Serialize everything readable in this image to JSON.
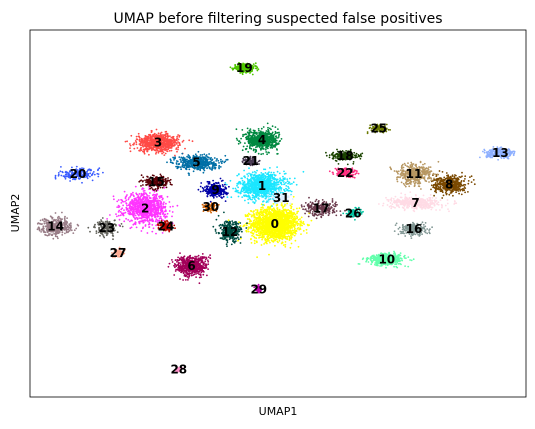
{
  "chart_data": {
    "type": "scatter",
    "title": "UMAP before filtering suspected false positives",
    "xlabel": "UMAP1",
    "ylabel": "UMAP2",
    "xlim": [
      -12,
      19
    ],
    "ylim": [
      -12,
      16
    ],
    "ticks_shown": false,
    "grid": false,
    "clusters": [
      {
        "label": "0",
        "color": "#ffff00",
        "x": 3.3,
        "y": 1.2,
        "sx": 1.3,
        "sy": 1.1,
        "n": 1800
      },
      {
        "label": "1",
        "color": "#1ce6ff",
        "x": 2.5,
        "y": 4.1,
        "sx": 1.3,
        "sy": 0.9,
        "n": 1000
      },
      {
        "label": "2",
        "color": "#ff34ff",
        "x": -4.8,
        "y": 2.4,
        "sx": 1.2,
        "sy": 1.0,
        "n": 900
      },
      {
        "label": "3",
        "color": "#ff4a46",
        "x": -4.0,
        "y": 7.4,
        "sx": 1.2,
        "sy": 0.6,
        "n": 700
      },
      {
        "label": "4",
        "color": "#008941",
        "x": 2.5,
        "y": 7.6,
        "sx": 0.9,
        "sy": 0.7,
        "n": 650
      },
      {
        "label": "5",
        "color": "#006fa6",
        "x": -1.6,
        "y": 5.9,
        "sx": 1.2,
        "sy": 0.5,
        "n": 450
      },
      {
        "label": "6",
        "color": "#a30059",
        "x": -1.9,
        "y": -2.0,
        "sx": 0.9,
        "sy": 0.7,
        "n": 550
      },
      {
        "label": "7",
        "color": "#ffdbe5",
        "x": 12.1,
        "y": 2.8,
        "sx": 1.4,
        "sy": 0.4,
        "n": 450
      },
      {
        "label": "8",
        "color": "#7a4900",
        "x": 14.2,
        "y": 4.2,
        "sx": 0.9,
        "sy": 0.6,
        "n": 450
      },
      {
        "label": "9",
        "color": "#0000a6",
        "x": -0.4,
        "y": 3.8,
        "sx": 0.6,
        "sy": 0.5,
        "n": 300
      },
      {
        "label": "10",
        "color": "#63ffac",
        "x": 10.3,
        "y": -1.5,
        "sx": 1.0,
        "sy": 0.4,
        "n": 450
      },
      {
        "label": "11",
        "color": "#b79762",
        "x": 12.0,
        "y": 5.0,
        "sx": 1.0,
        "sy": 0.7,
        "n": 400
      },
      {
        "label": "12",
        "color": "#004d43",
        "x": 0.5,
        "y": 0.6,
        "sx": 0.6,
        "sy": 0.7,
        "n": 300
      },
      {
        "label": "13",
        "color": "#8fb0ff",
        "x": 17.4,
        "y": 6.6,
        "sx": 0.8,
        "sy": 0.3,
        "n": 300
      },
      {
        "label": "14",
        "color": "#997d87",
        "x": -10.4,
        "y": 1.0,
        "sx": 0.9,
        "sy": 0.6,
        "n": 350
      },
      {
        "label": "15",
        "color": "#5a0007",
        "x": -4.1,
        "y": 4.4,
        "sx": 0.7,
        "sy": 0.4,
        "n": 250
      },
      {
        "label": "16",
        "color": "#809693",
        "x": 12.0,
        "y": 0.8,
        "sx": 0.7,
        "sy": 0.4,
        "n": 250
      },
      {
        "label": "17",
        "color": "#6a3a4c",
        "x": 6.2,
        "y": 2.4,
        "sx": 0.9,
        "sy": 0.5,
        "n": 250
      },
      {
        "label": "18",
        "color": "#1b4400",
        "x": 7.7,
        "y": 6.4,
        "sx": 0.7,
        "sy": 0.3,
        "n": 250
      },
      {
        "label": "19",
        "color": "#4fc601",
        "x": 1.4,
        "y": 13.1,
        "sx": 0.6,
        "sy": 0.3,
        "n": 250
      },
      {
        "label": "20",
        "color": "#3b5dff",
        "x": -9.0,
        "y": 5.0,
        "sx": 1.0,
        "sy": 0.35,
        "n": 200
      },
      {
        "label": "21",
        "color": "#4a3b53",
        "x": 1.8,
        "y": 6.0,
        "sx": 0.4,
        "sy": 0.3,
        "n": 120
      },
      {
        "label": "22",
        "color": "#ff2f80",
        "x": 7.7,
        "y": 5.1,
        "sx": 0.6,
        "sy": 0.3,
        "n": 160
      },
      {
        "label": "23",
        "color": "#61615a",
        "x": -7.2,
        "y": 0.9,
        "sx": 0.6,
        "sy": 0.5,
        "n": 180
      },
      {
        "label": "24",
        "color": "#ba0900",
        "x": -3.5,
        "y": 1.0,
        "sx": 0.4,
        "sy": 0.3,
        "n": 120
      },
      {
        "label": "25",
        "color": "#6b7900",
        "x": 9.8,
        "y": 8.5,
        "sx": 0.5,
        "sy": 0.25,
        "n": 120
      },
      {
        "label": "26",
        "color": "#00c2a0",
        "x": 8.2,
        "y": 2.0,
        "sx": 0.4,
        "sy": 0.3,
        "n": 120
      },
      {
        "label": "27",
        "color": "#ffaa92",
        "x": -6.5,
        "y": -1.0,
        "sx": 0.3,
        "sy": 0.3,
        "n": 80
      },
      {
        "label": "28",
        "color": "#ff90c9",
        "x": -2.7,
        "y": -9.9,
        "sx": 0.2,
        "sy": 0.15,
        "n": 40
      },
      {
        "label": "29",
        "color": "#b903aa",
        "x": 2.3,
        "y": -3.8,
        "sx": 0.2,
        "sy": 0.25,
        "n": 50
      },
      {
        "label": "30",
        "color": "#d16100",
        "x": -0.7,
        "y": 2.5,
        "sx": 0.4,
        "sy": 0.3,
        "n": 80
      },
      {
        "label": "31",
        "color": "#ddefff",
        "x": 3.7,
        "y": 3.2,
        "sx": 0.6,
        "sy": 0.4,
        "n": 80
      }
    ]
  }
}
